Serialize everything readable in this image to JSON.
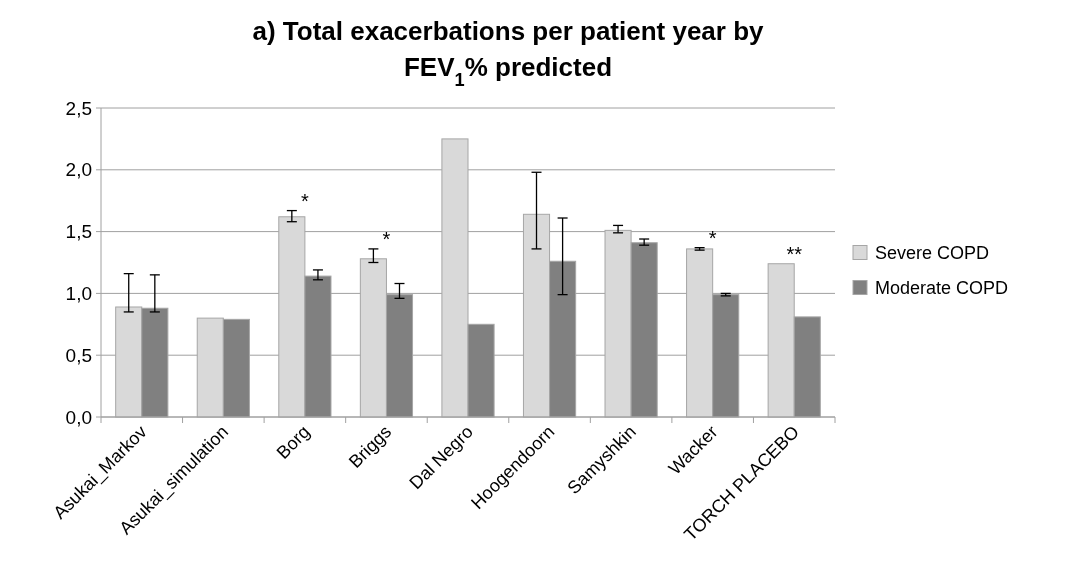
{
  "chart_data": {
    "type": "bar",
    "title": "a) Total exacerbations per patient year by FEV$_{1}$% predicted",
    "categories": [
      "Asukai_Markov",
      "Asukai_simulation",
      "Borg",
      "Briggs",
      "Dal Negro",
      "Hoogendoorn",
      "Samyshkin",
      "Wacker",
      "TORCH PLACEBO"
    ],
    "series": [
      {
        "name": "Severe COPD",
        "color": "#d9d9d9",
        "values": [
          0.89,
          0.8,
          1.62,
          1.28,
          2.25,
          1.64,
          1.51,
          1.36,
          1.24
        ],
        "errors": [
          [
            0.85,
            1.16
          ],
          null,
          [
            1.58,
            1.67
          ],
          [
            1.25,
            1.36
          ],
          null,
          [
            1.36,
            1.98
          ],
          [
            1.49,
            1.55
          ],
          [
            1.35,
            1.37
          ],
          null
        ]
      },
      {
        "name": "Moderate COPD",
        "color": "#808080",
        "values": [
          0.88,
          0.79,
          1.14,
          0.99,
          0.75,
          1.26,
          1.41,
          0.99,
          0.81
        ],
        "errors": [
          [
            0.85,
            1.15
          ],
          null,
          [
            1.11,
            1.19
          ],
          [
            0.96,
            1.08
          ],
          null,
          [
            0.99,
            1.61
          ],
          [
            1.39,
            1.44
          ],
          [
            0.98,
            1.0
          ],
          null
        ]
      }
    ],
    "ylim": [
      0,
      2.5
    ],
    "yticks": [
      {
        "value": 0,
        "label": "0,0"
      },
      {
        "value": 0.5,
        "label": "0,5"
      },
      {
        "value": 1,
        "label": "1,0"
      },
      {
        "value": 1.5,
        "label": "1,5"
      },
      {
        "value": 2,
        "label": "2,0"
      },
      {
        "value": 2.5,
        "label": "2,5"
      }
    ],
    "grid": "y",
    "legend": "right",
    "annotations": [
      {
        "text": "*",
        "x": "Borg",
        "y": 1.62
      },
      {
        "text": "*",
        "x": "Briggs",
        "y": 1.28
      },
      {
        "text": "*",
        "x": "Wacker",
        "y": 1.36
      },
      {
        "text": "**",
        "x": "TORCH PLACEBO",
        "y": 1.24
      }
    ]
  }
}
